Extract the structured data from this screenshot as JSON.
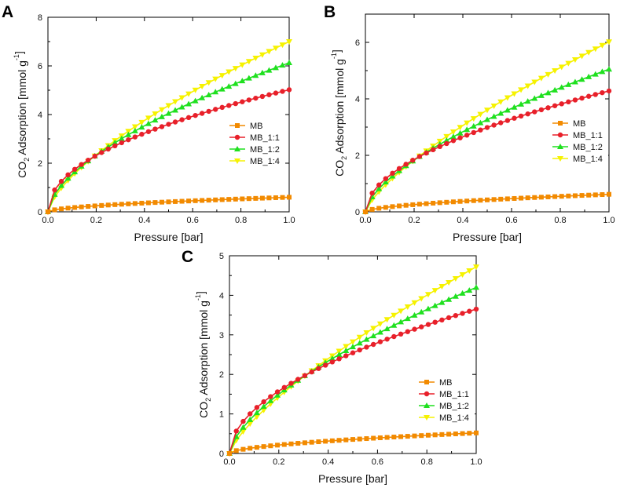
{
  "figure": {
    "panel_letters": [
      "A",
      "B",
      "C"
    ]
  },
  "legend_labels": [
    "MB",
    "MB_1:1",
    "MB_1:2",
    "MB_1:4"
  ],
  "colors": {
    "MB": "#f28a00",
    "MB_1:1": "#e8202a",
    "MB_1:2": "#1fe01f",
    "MB_1:4": "#f6f200"
  },
  "chart_data": [
    {
      "panel": "A",
      "type": "line",
      "title": "",
      "xlabel": "Pressure [bar]",
      "ylabel_main": "CO",
      "ylabel_sub": "2",
      "ylabel_rest": " Adsorption [mmol g",
      "ylabel_sup": "-1",
      "ylabel_end": "]",
      "xlim": [
        0,
        1.0
      ],
      "ylim": [
        0,
        8
      ],
      "xticks": [
        "0.0",
        "0.2",
        "0.4",
        "0.6",
        "0.8",
        "1.0"
      ],
      "yticks": [
        "0",
        "2",
        "4",
        "6",
        "8"
      ],
      "legend_position": "middle-right",
      "series": [
        {
          "name": "MB",
          "marker": "square",
          "end_value": 0.6,
          "exponent": 0.55
        },
        {
          "name": "MB_1:1",
          "marker": "circle",
          "end_value": 5.02,
          "exponent": 0.48
        },
        {
          "name": "MB_1:2",
          "marker": "triangle-up",
          "end_value": 6.13,
          "exponent": 0.6
        },
        {
          "name": "MB_1:4",
          "marker": "triangle-down",
          "end_value": 7.0,
          "exponent": 0.68
        }
      ]
    },
    {
      "panel": "B",
      "type": "line",
      "title": "",
      "xlabel": "Pressure [bar]",
      "ylabel_main": "CO",
      "ylabel_sub": "2",
      "ylabel_rest": " Adsorption [mmol g",
      "ylabel_sup": "-1",
      "ylabel_end": "]",
      "xlim": [
        0,
        1.0
      ],
      "ylim": [
        0,
        7
      ],
      "xticks": [
        "0.0",
        "0.2",
        "0.4",
        "0.6",
        "0.8",
        "1.0"
      ],
      "yticks": [
        "0",
        "2",
        "4",
        "6"
      ],
      "legend_position": "middle-right",
      "series": [
        {
          "name": "MB",
          "marker": "square",
          "end_value": 0.62,
          "exponent": 0.55
        },
        {
          "name": "MB_1:1",
          "marker": "circle",
          "end_value": 4.28,
          "exponent": 0.52
        },
        {
          "name": "MB_1:2",
          "marker": "triangle-up",
          "end_value": 5.05,
          "exponent": 0.63
        },
        {
          "name": "MB_1:4",
          "marker": "triangle-down",
          "end_value": 6.02,
          "exponent": 0.74
        }
      ]
    },
    {
      "panel": "C",
      "type": "line",
      "title": "",
      "xlabel": "Pressure [bar]",
      "ylabel_main": "CO",
      "ylabel_sub": "2",
      "ylabel_rest": " Adsorption [mmol g",
      "ylabel_sup": "-1",
      "ylabel_end": "]",
      "xlim": [
        0,
        1.0
      ],
      "ylim": [
        0,
        5
      ],
      "xticks": [
        "0.0",
        "0.2",
        "0.4",
        "0.6",
        "0.8",
        "1.0"
      ],
      "yticks": [
        "0",
        "1",
        "2",
        "3",
        "4",
        "5"
      ],
      "legend_position": "middle-right",
      "series": [
        {
          "name": "MB",
          "marker": "square",
          "end_value": 0.52,
          "exponent": 0.55
        },
        {
          "name": "MB_1:1",
          "marker": "circle",
          "end_value": 3.65,
          "exponent": 0.52
        },
        {
          "name": "MB_1:2",
          "marker": "triangle-up",
          "end_value": 4.2,
          "exponent": 0.64
        },
        {
          "name": "MB_1:4",
          "marker": "triangle-down",
          "end_value": 4.72,
          "exponent": 0.74
        }
      ]
    }
  ]
}
